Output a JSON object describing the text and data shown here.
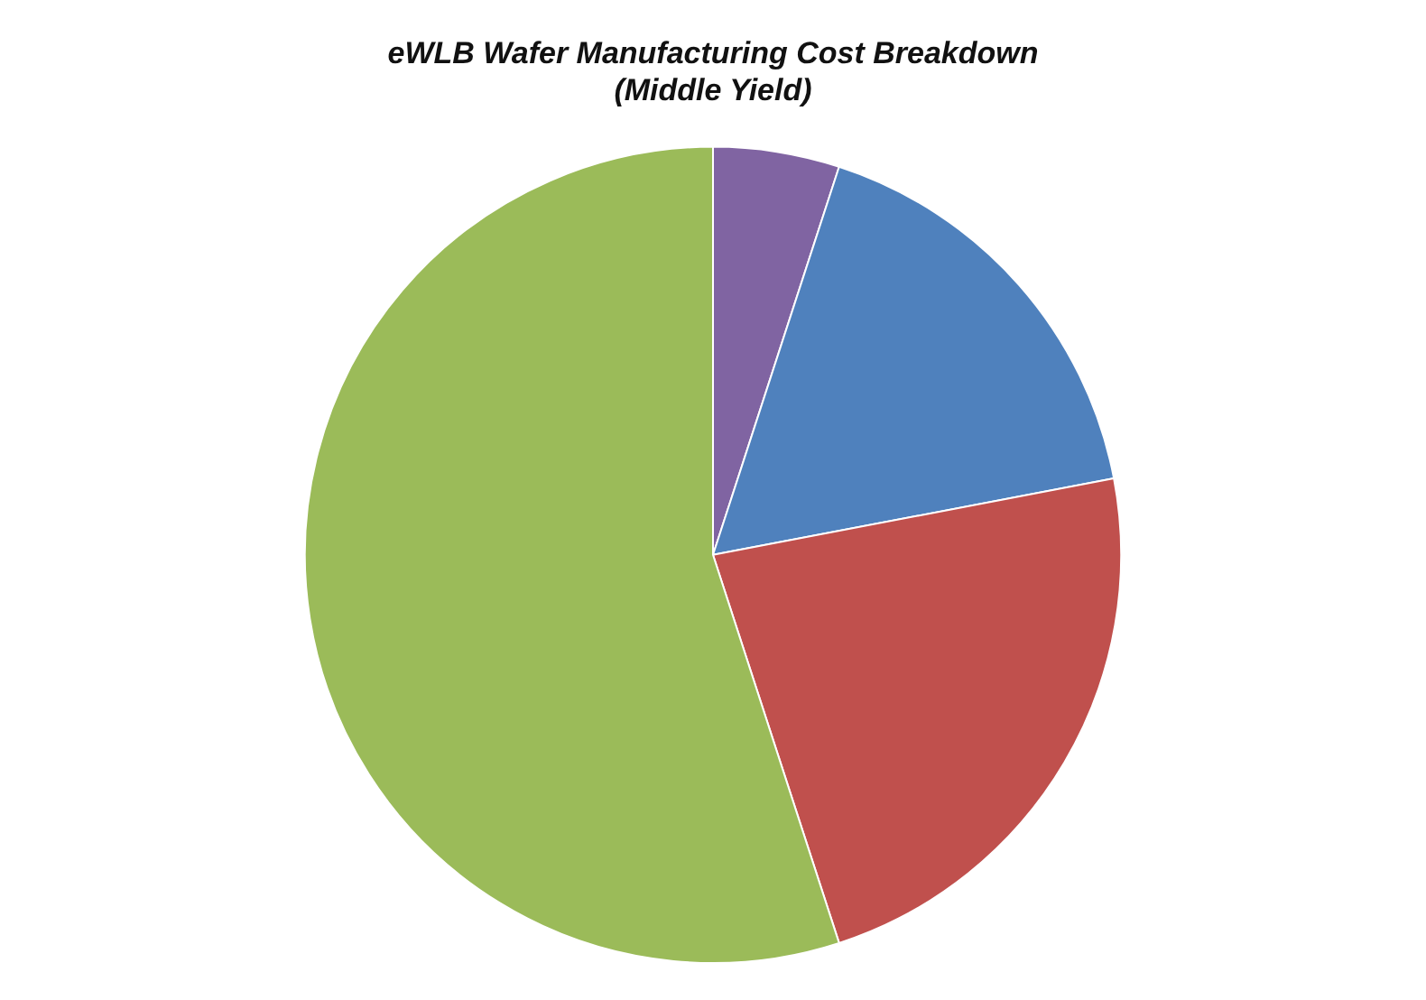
{
  "chart_data": {
    "type": "pie",
    "title": "eWLB Wafer Manufacturing Cost Breakdown\n(Middle Yield)",
    "categories": [
      null,
      null,
      null,
      null
    ],
    "values": [
      5,
      17,
      23,
      55
    ],
    "colors": [
      "#8064a2",
      "#4f81bd",
      "#c0504d",
      "#9bbb59"
    ],
    "legend": false
  }
}
